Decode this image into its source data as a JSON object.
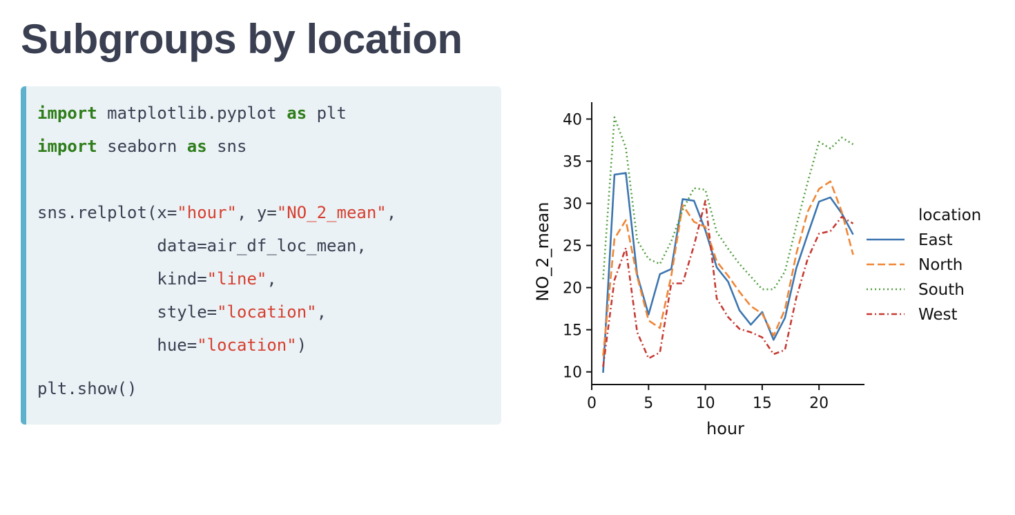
{
  "page": {
    "title": "Subgroups by location"
  },
  "code": {
    "lines": [
      [
        {
          "t": "import",
          "c": "kw"
        },
        {
          "t": " matplotlib.pyplot "
        },
        {
          "t": "as",
          "c": "kw"
        },
        {
          "t": " plt"
        }
      ],
      [
        {
          "t": "import",
          "c": "kw"
        },
        {
          "t": " seaborn "
        },
        {
          "t": "as",
          "c": "kw"
        },
        {
          "t": " sns"
        }
      ],
      [],
      [
        {
          "t": "sns.relplot(x="
        },
        {
          "t": "\"hour\"",
          "c": "str"
        },
        {
          "t": ", y="
        },
        {
          "t": "\"NO_2_mean\"",
          "c": "str"
        },
        {
          "t": ","
        }
      ],
      [
        {
          "t": "            data=air_df_loc_mean,"
        }
      ],
      [
        {
          "t": "            kind="
        },
        {
          "t": "\"line\"",
          "c": "str"
        },
        {
          "t": ","
        }
      ],
      [
        {
          "t": "            style="
        },
        {
          "t": "\"location\"",
          "c": "str"
        },
        {
          "t": ","
        }
      ],
      [
        {
          "t": "            hue="
        },
        {
          "t": "\"location\"",
          "c": "str"
        },
        {
          "t": ")"
        }
      ],
      [],
      [
        {
          "t": "plt.show()"
        }
      ]
    ]
  },
  "chart_data": {
    "type": "line",
    "xlabel": "hour",
    "ylabel": "NO_2_mean",
    "xlim": [
      0,
      24
    ],
    "ylim": [
      8.5,
      42
    ],
    "xticks": [
      0,
      5,
      10,
      15,
      20
    ],
    "yticks": [
      10,
      15,
      20,
      25,
      30,
      35,
      40
    ],
    "grid": false,
    "legend_title": "location",
    "legend_position": "right",
    "x": [
      1,
      2,
      3,
      4,
      5,
      6,
      7,
      8,
      9,
      10,
      11,
      12,
      13,
      14,
      15,
      16,
      17,
      18,
      19,
      20,
      21,
      22,
      23
    ],
    "series": [
      {
        "name": "East",
        "color": "#3b75af",
        "dash": "solid",
        "values": [
          9.9,
          33.4,
          33.6,
          21.5,
          16.8,
          21.6,
          22.2,
          30.5,
          30.3,
          26.8,
          22.4,
          20.7,
          17.3,
          15.6,
          17.1,
          13.8,
          16.4,
          22.3,
          26.3,
          30.2,
          30.7,
          28.8,
          26.3
        ]
      },
      {
        "name": "North",
        "color": "#ef8636",
        "dash": "dashed",
        "values": [
          11.9,
          25.8,
          28.0,
          21.3,
          16.1,
          15.2,
          21.4,
          29.8,
          27.8,
          27.2,
          23.1,
          21.4,
          19.5,
          17.8,
          16.9,
          14.3,
          17.4,
          24.0,
          29.0,
          31.7,
          32.6,
          29.0,
          23.9
        ]
      },
      {
        "name": "South",
        "color": "#519e3e",
        "dash": "dotted",
        "values": [
          21.0,
          40.2,
          36.6,
          25.6,
          23.4,
          22.8,
          25.5,
          29.2,
          31.8,
          31.6,
          26.6,
          24.6,
          22.8,
          21.3,
          19.8,
          19.8,
          21.9,
          27.3,
          32.5,
          37.3,
          36.5,
          37.8,
          37.0
        ]
      },
      {
        "name": "West",
        "color": "#c53a32",
        "dash": "dashdot",
        "values": [
          10.6,
          20.9,
          24.7,
          14.7,
          11.6,
          12.3,
          20.5,
          20.5,
          25.0,
          30.3,
          18.7,
          16.5,
          15.1,
          14.7,
          14.1,
          12.1,
          12.6,
          18.8,
          23.4,
          26.4,
          26.7,
          28.4,
          27.6
        ]
      }
    ]
  }
}
